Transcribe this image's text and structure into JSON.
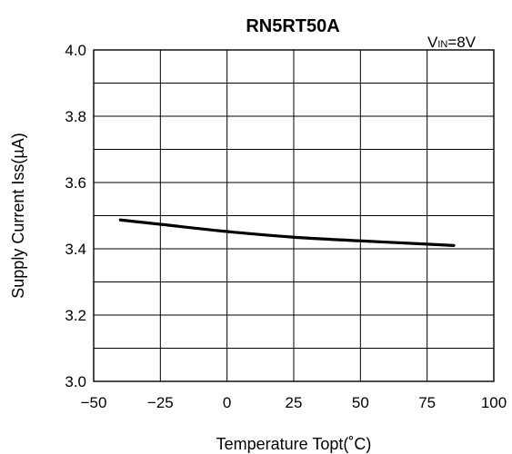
{
  "chart_data": {
    "type": "line",
    "title": "RN5RT50A",
    "annotation": {
      "main": "V",
      "subscript": "IN",
      "suffix": "=8V"
    },
    "xlabel": "Temperature Topt(˚C)",
    "ylabel": "Supply Current Iss(µA)",
    "xlim": [
      -50,
      100
    ],
    "ylim": [
      3.0,
      4.0
    ],
    "x_ticks": [
      -50,
      -25,
      0,
      25,
      50,
      75,
      100
    ],
    "x_tick_labels": [
      "−50",
      "−25",
      "0",
      "25",
      "50",
      "75",
      "100"
    ],
    "y_ticks": [
      3.0,
      3.2,
      3.4,
      3.6,
      3.8,
      4.0
    ],
    "y_tick_labels": [
      "3.0",
      "3.2",
      "3.4",
      "3.6",
      "3.8",
      "4.0"
    ],
    "x_grid_step": 25,
    "y_grid_step": 0.1,
    "grid": true,
    "series": [
      {
        "x": [
          -40,
          -25,
          0,
          25,
          50,
          75,
          85
        ],
        "y": [
          3.487,
          3.474,
          3.452,
          3.435,
          3.424,
          3.414,
          3.41
        ]
      }
    ]
  }
}
